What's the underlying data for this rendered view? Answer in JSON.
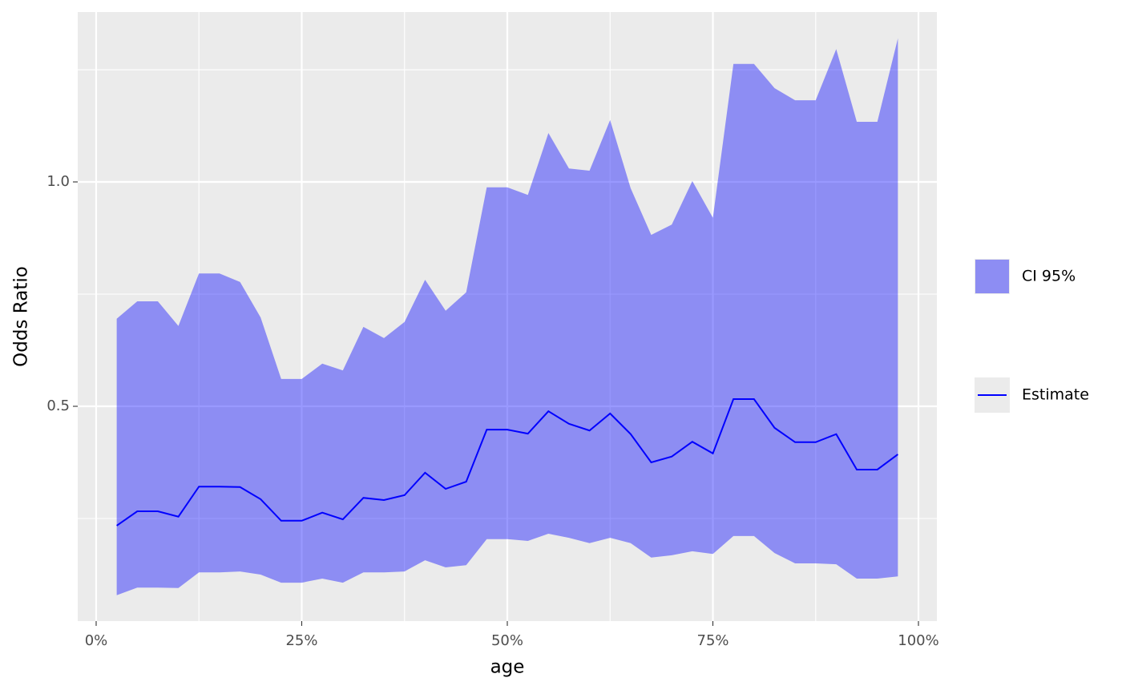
{
  "chart_data": {
    "type": "line",
    "x_label": "age",
    "y_label": "Odds Ratio",
    "x": [
      2.5,
      5,
      7.5,
      10,
      12.5,
      15,
      17.5,
      20,
      22.5,
      25,
      27.5,
      30,
      32.5,
      35,
      37.5,
      40,
      42.5,
      45,
      47.5,
      50,
      52.5,
      55,
      57.5,
      60,
      62.5,
      65,
      67.5,
      70,
      72.5,
      75,
      77.5,
      80,
      82.5,
      85,
      87.5,
      90,
      92.5,
      95,
      97.5
    ],
    "ribbon": {
      "name": "CI 95%",
      "color": "#0000ff",
      "opacity": 0.4,
      "upper": [
        0.695,
        0.734,
        0.734,
        0.679,
        0.796,
        0.796,
        0.777,
        0.698,
        0.561,
        0.561,
        0.595,
        0.58,
        0.677,
        0.652,
        0.688,
        0.782,
        0.713,
        0.754,
        0.988,
        0.988,
        0.971,
        1.109,
        1.03,
        1.025,
        1.138,
        0.986,
        0.882,
        0.905,
        1.002,
        0.92,
        1.263,
        1.263,
        1.209,
        1.182,
        1.182,
        1.296,
        1.134,
        1.134,
        1.32
      ],
      "lower": [
        0.079,
        0.096,
        0.096,
        0.095,
        0.13,
        0.13,
        0.132,
        0.125,
        0.107,
        0.107,
        0.116,
        0.107,
        0.13,
        0.13,
        0.132,
        0.157,
        0.141,
        0.146,
        0.204,
        0.204,
        0.2,
        0.216,
        0.207,
        0.195,
        0.207,
        0.195,
        0.163,
        0.168,
        0.177,
        0.171,
        0.211,
        0.211,
        0.173,
        0.15,
        0.15,
        0.148,
        0.116,
        0.116,
        0.121
      ]
    },
    "series": [
      {
        "name": "Estimate",
        "color": "#0000ff",
        "values": [
          0.234,
          0.266,
          0.266,
          0.254,
          0.321,
          0.321,
          0.32,
          0.293,
          0.245,
          0.245,
          0.263,
          0.248,
          0.296,
          0.291,
          0.302,
          0.352,
          0.316,
          0.332,
          0.448,
          0.448,
          0.439,
          0.489,
          0.461,
          0.446,
          0.484,
          0.438,
          0.375,
          0.388,
          0.421,
          0.395,
          0.516,
          0.516,
          0.452,
          0.42,
          0.42,
          0.438,
          0.359,
          0.359,
          0.393
        ]
      }
    ],
    "xlim": [
      -2.24,
      102.24
    ],
    "xticks": [
      {
        "value": 0,
        "label": "0%"
      },
      {
        "value": 25,
        "label": "25%"
      },
      {
        "value": 50,
        "label": "50%"
      },
      {
        "value": 75,
        "label": "75%"
      },
      {
        "value": 100,
        "label": "100%"
      }
    ],
    "x_minor_grid": [
      12.5,
      37.5,
      62.5,
      87.5
    ],
    "ylim": [
      0.0214,
      1.3786
    ],
    "yticks": [
      0.5,
      {
        "value": 1,
        "label": "1.0"
      }
    ],
    "y_minor_grid": [
      0.25,
      0.75,
      1.25
    ],
    "grid": true,
    "legend": "right"
  }
}
